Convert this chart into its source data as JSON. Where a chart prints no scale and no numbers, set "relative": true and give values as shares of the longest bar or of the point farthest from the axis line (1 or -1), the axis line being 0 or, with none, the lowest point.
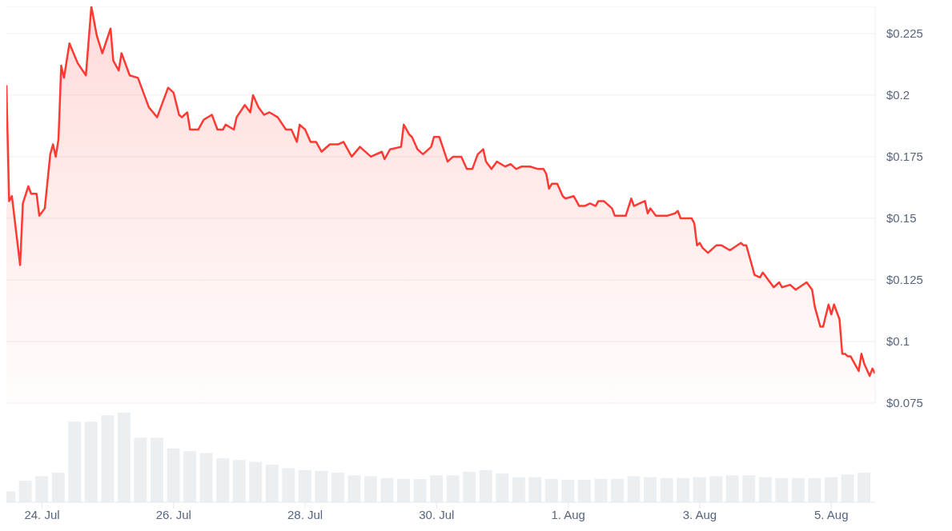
{
  "chart_data": [
    {
      "type": "area",
      "series": [
        {
          "color": "#ff3a33",
          "x": [
            "--07-23T11:00",
            "--07-23T12:00",
            "--07-23T13:00",
            "--07-23T16:00",
            "--07-23T17:00",
            "--07-23T19:00",
            "--07-23T20:00",
            "--07-23T22:00",
            "--07-23T23:00",
            "--07-24T01:00",
            "--07-24T03:00",
            "--07-24T04:00",
            "--07-24T05:00",
            "--07-24T06:00",
            "--07-24T07:00",
            "--07-24T08:00",
            "--07-24T10:00",
            "--07-24T13:00",
            "--07-24T16:00",
            "--07-24T18:00",
            "--07-24T20:00",
            "--07-24T22:00",
            "--07-25T01:00",
            "--07-25T02:00",
            "--07-25T04:00",
            "--07-25T05:00",
            "--07-25T08:00",
            "--07-25T11:00",
            "--07-25T15:00",
            "--07-25T18:00",
            "--07-25T22:00",
            "--07-26T00:00",
            "--07-26T02:00",
            "--07-26T03:00",
            "--07-26T05:00",
            "--07-26T06:00",
            "--07-26T09:00",
            "--07-26T11:00",
            "--07-26T14:00",
            "--07-26T16:00",
            "--07-26T18:00",
            "--07-26T19:00",
            "--07-26T22:00",
            "--07-26T23:00",
            "--07-27T02:00",
            "--07-27T04:00",
            "--07-27T05:00",
            "--07-27T07:00",
            "--07-27T09:00",
            "--07-27T11:00",
            "--07-27T14:00",
            "--07-27T17:00",
            "--07-27T19:00",
            "--07-27T21:00",
            "--07-27T22:00",
            "--07-28T00:00",
            "--07-28T02:00",
            "--07-28T04:00",
            "--07-28T06:00",
            "--07-28T09:00",
            "--07-28T12:00",
            "--07-28T14:00",
            "--07-28T17:00",
            "--07-28T20:00",
            "--07-29T00:00",
            "--07-29T04:00",
            "--07-29T05:00",
            "--07-29T07:00",
            "--07-29T11:00",
            "--07-29T12:00",
            "--07-29T14:00",
            "--07-29T15:00",
            "--07-29T17:00",
            "--07-29T19:00",
            "--07-29T22:00",
            "--07-29T23:00",
            "--07-30T01:00",
            "--07-30T04:00",
            "--07-30T06:00",
            "--07-30T09:00",
            "--07-30T11:00",
            "--07-30T13:00",
            "--07-30T15:00",
            "--07-30T17:00",
            "--07-30T18:00",
            "--07-30T20:00",
            "--07-30T22:00",
            "--07-31T01:00",
            "--07-31T03:00",
            "--07-31T05:00",
            "--07-31T07:00",
            "--07-31T10:00",
            "--07-31T13:00",
            "--07-31T15:00",
            "--07-31T16:00",
            "--07-31T17:00",
            "--07-31T18:00",
            "--07-31T20:00",
            "--07-31T22:00",
            "--07-31T23:00",
            "--08-01T02:00",
            "--08-01T04:00",
            "--08-01T06:00",
            "--08-01T08:00",
            "--08-01T10:00",
            "--08-01T11:00",
            "--08-01T13:00",
            "--08-01T16:00",
            "--08-01T17:00",
            "--08-01T21:00",
            "--08-01T23:00",
            "--08-02T00:00",
            "--08-02T02:00",
            "--08-02T04:00",
            "--08-02T05:00",
            "--08-02T06:00",
            "--08-02T08:00",
            "--08-02T12:00",
            "--08-02T15:00",
            "--08-02T16:00",
            "--08-02T17:00",
            "--08-02T21:00",
            "--08-02T22:00",
            "--08-02T23:00",
            "--08-03T00:00",
            "--08-03T01:00",
            "--08-03T03:00",
            "--08-03T06:00",
            "--08-03T08:00",
            "--08-03T11:00",
            "--08-03T15:00",
            "--08-03T16:00",
            "--08-03T17:00",
            "--08-03T19:00",
            "--08-03T20:00",
            "--08-03T22:00",
            "--08-03T23:00",
            "--08-04T03:00",
            "--08-04T05:00",
            "--08-04T06:00",
            "--08-04T09:00",
            "--08-04T11:00",
            "--08-04T15:00",
            "--08-04T17:00",
            "--08-04T18:00",
            "--08-04T20:00",
            "--08-04T21:00",
            "--08-04T23:00",
            "--08-05T00:00",
            "--08-05T01:00",
            "--08-05T03:00",
            "--08-05T04:00",
            "--08-05T05:00",
            "--08-05T06:00",
            "--08-05T07:00",
            "--08-05T10:00",
            "--08-05T11:00",
            "--08-05T12:00",
            "--08-05T14:00",
            "--08-05T15:00",
            "--08-05T16:00"
          ],
          "values": [
            0.204,
            0.157,
            0.159,
            0.131,
            0.156,
            0.163,
            0.16,
            0.16,
            0.151,
            0.154,
            0.176,
            0.18,
            0.175,
            0.182,
            0.212,
            0.207,
            0.221,
            0.213,
            0.208,
            0.236,
            0.224,
            0.217,
            0.227,
            0.214,
            0.21,
            0.217,
            0.208,
            0.207,
            0.195,
            0.191,
            0.203,
            0.201,
            0.192,
            0.191,
            0.193,
            0.186,
            0.186,
            0.19,
            0.192,
            0.186,
            0.186,
            0.188,
            0.186,
            0.191,
            0.196,
            0.193,
            0.2,
            0.195,
            0.192,
            0.193,
            0.191,
            0.186,
            0.186,
            0.181,
            0.188,
            0.186,
            0.181,
            0.181,
            0.177,
            0.18,
            0.18,
            0.181,
            0.175,
            0.179,
            0.175,
            0.177,
            0.174,
            0.178,
            0.179,
            0.188,
            0.184,
            0.183,
            0.178,
            0.176,
            0.179,
            0.183,
            0.183,
            0.173,
            0.175,
            0.175,
            0.17,
            0.17,
            0.176,
            0.178,
            0.173,
            0.17,
            0.173,
            0.171,
            0.172,
            0.17,
            0.171,
            0.171,
            0.17,
            0.17,
            0.168,
            0.162,
            0.164,
            0.164,
            0.159,
            0.158,
            0.159,
            0.155,
            0.155,
            0.156,
            0.155,
            0.157,
            0.157,
            0.154,
            0.151,
            0.151,
            0.158,
            0.155,
            0.156,
            0.157,
            0.152,
            0.154,
            0.151,
            0.151,
            0.152,
            0.153,
            0.15,
            0.15,
            0.148,
            0.139,
            0.14,
            0.138,
            0.136,
            0.139,
            0.139,
            0.137,
            0.14,
            0.139,
            0.139,
            0.131,
            0.127,
            0.126,
            0.128,
            0.122,
            0.124,
            0.122,
            0.123,
            0.121,
            0.124,
            0.121,
            0.114,
            0.106,
            0.106,
            0.115,
            0.111,
            0.115,
            0.109,
            0.095,
            0.095,
            0.094,
            0.094,
            0.088,
            0.095,
            0.091,
            0.086,
            0.089,
            0.087
          ]
        }
      ],
      "xlim": [
        "--07-23T11:00",
        "--08-05T16:00"
      ],
      "ylim": [
        0.075,
        0.236
      ],
      "yticks": [
        {
          "value": 0.075,
          "label": "$0.075"
        },
        {
          "value": 0.1,
          "label": "$0.1"
        },
        {
          "value": 0.125,
          "label": "$0.125"
        },
        {
          "value": 0.15,
          "label": "$0.15"
        },
        {
          "value": 0.175,
          "label": "$0.175"
        },
        {
          "value": 0.2,
          "label": "$0.2"
        },
        {
          "value": 0.225,
          "label": "$0.225"
        }
      ],
      "grid": "y",
      "tick_labels": "y"
    },
    {
      "type": "bar",
      "relative": true,
      "color": "#eceff2",
      "x": [
        "--07-23T12:00",
        "--07-23T18:00",
        "--07-24T00:00",
        "--07-24T06:00",
        "--07-24T12:00",
        "--07-24T18:00",
        "--07-25T00:00",
        "--07-25T06:00",
        "--07-25T12:00",
        "--07-25T18:00",
        "--07-26T00:00",
        "--07-26T06:00",
        "--07-26T12:00",
        "--07-26T18:00",
        "--07-27T00:00",
        "--07-27T06:00",
        "--07-27T12:00",
        "--07-27T18:00",
        "--07-28T00:00",
        "--07-28T06:00",
        "--07-28T12:00",
        "--07-28T18:00",
        "--07-29T00:00",
        "--07-29T06:00",
        "--07-29T12:00",
        "--07-29T18:00",
        "--07-30T00:00",
        "--07-30T06:00",
        "--07-30T12:00",
        "--07-30T18:00",
        "--07-31T00:00",
        "--07-31T06:00",
        "--07-31T12:00",
        "--07-31T18:00",
        "--08-01T00:00",
        "--08-01T06:00",
        "--08-01T12:00",
        "--08-01T18:00",
        "--08-02T00:00",
        "--08-02T06:00",
        "--08-02T12:00",
        "--08-02T18:00",
        "--08-03T00:00",
        "--08-03T06:00",
        "--08-03T12:00",
        "--08-03T18:00",
        "--08-04T00:00",
        "--08-04T06:00",
        "--08-04T12:00",
        "--08-04T18:00",
        "--08-05T00:00",
        "--08-05T06:00",
        "--08-05T12:00"
      ],
      "values": [
        0.12,
        0.24,
        0.29,
        0.33,
        0.9,
        0.9,
        0.97,
        1,
        0.72,
        0.72,
        0.6,
        0.57,
        0.55,
        0.49,
        0.47,
        0.45,
        0.42,
        0.38,
        0.36,
        0.35,
        0.33,
        0.3,
        0.29,
        0.27,
        0.26,
        0.26,
        0.3,
        0.3,
        0.34,
        0.36,
        0.32,
        0.28,
        0.28,
        0.26,
        0.25,
        0.25,
        0.26,
        0.26,
        0.29,
        0.28,
        0.27,
        0.27,
        0.28,
        0.29,
        0.3,
        0.3,
        0.28,
        0.27,
        0.27,
        0.27,
        0.28,
        0.31,
        0.33
      ],
      "xlim": [
        "--07-23T11:00",
        "--08-05T16:00"
      ],
      "xticks": [
        {
          "value": "--07-24",
          "label": "24. Jul"
        },
        {
          "value": "--07-26",
          "label": "26. Jul"
        },
        {
          "value": "--07-28",
          "label": "28. Jul"
        },
        {
          "value": "--07-30",
          "label": "30. Jul"
        },
        {
          "value": "--08-01",
          "label": "1. Aug"
        },
        {
          "value": "--08-03",
          "label": "3. Aug"
        },
        {
          "value": "--08-05",
          "label": "5. Aug"
        }
      ],
      "tick_labels": "x"
    }
  ]
}
